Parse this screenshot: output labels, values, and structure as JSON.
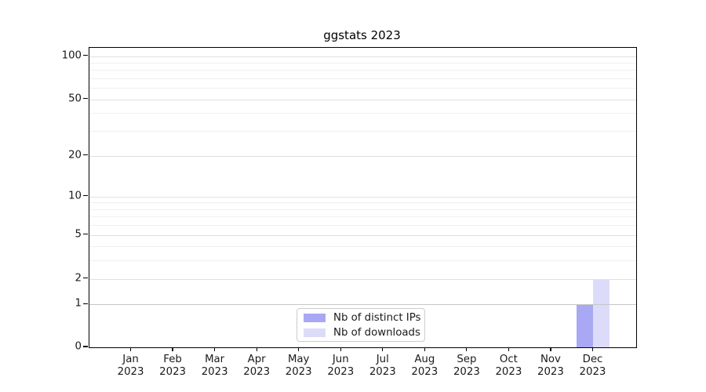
{
  "chart_data": {
    "type": "bar",
    "title": "ggstats 2023",
    "categories": [
      {
        "month": "Jan",
        "year": "2023"
      },
      {
        "month": "Feb",
        "year": "2023"
      },
      {
        "month": "Mar",
        "year": "2023"
      },
      {
        "month": "Apr",
        "year": "2023"
      },
      {
        "month": "May",
        "year": "2023"
      },
      {
        "month": "Jun",
        "year": "2023"
      },
      {
        "month": "Jul",
        "year": "2023"
      },
      {
        "month": "Aug",
        "year": "2023"
      },
      {
        "month": "Sep",
        "year": "2023"
      },
      {
        "month": "Oct",
        "year": "2023"
      },
      {
        "month": "Nov",
        "year": "2023"
      },
      {
        "month": "Dec",
        "year": "2023"
      }
    ],
    "series": [
      {
        "name": "Nb of distinct IPs",
        "color": "#a8a8f4",
        "values": [
          0,
          0,
          0,
          0,
          0,
          0,
          0,
          0,
          0,
          0,
          0,
          1
        ]
      },
      {
        "name": "Nb of downloads",
        "color": "#dcdcfa",
        "values": [
          0,
          0,
          0,
          0,
          0,
          0,
          0,
          0,
          0,
          0,
          0,
          2
        ]
      }
    ],
    "xlabel": "",
    "ylabel": "",
    "y_scale": "log1p",
    "y_ticks": [
      0,
      1,
      2,
      5,
      10,
      20,
      50,
      100
    ],
    "y_minor_ticks": [
      3,
      4,
      6,
      7,
      8,
      9,
      30,
      40,
      60,
      70,
      80,
      90
    ],
    "ylim": [
      0,
      113
    ],
    "grid": "horizontal",
    "legend_position": "bottom-center-inside",
    "colors": {
      "background": "#ffffff",
      "spine": "#000000",
      "text": "#1a1a1a",
      "grid_major": "#e0e0e0",
      "grid_major_unit": "#c6c6c6",
      "grid_minor": "#efefef",
      "legend_border": "#cccccc"
    }
  }
}
